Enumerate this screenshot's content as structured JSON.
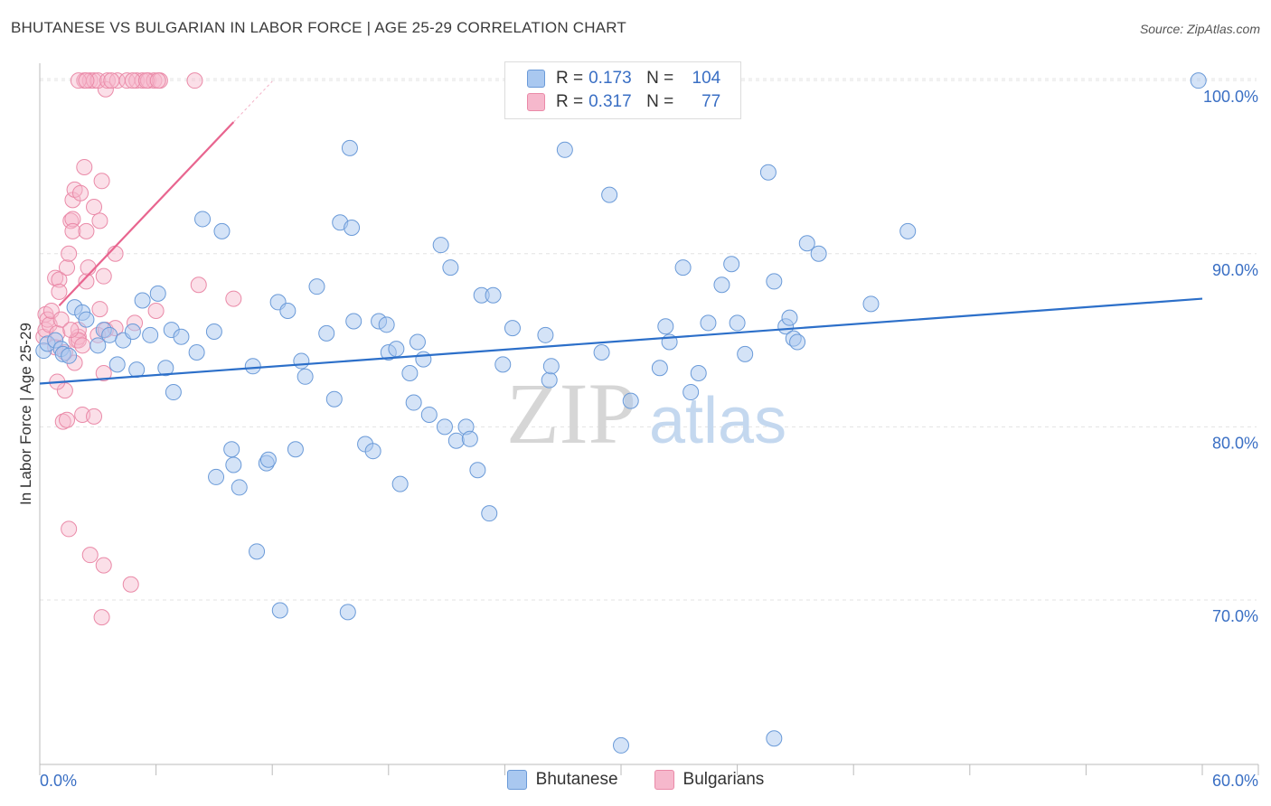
{
  "title": "BHUTANESE VS BULGARIAN IN LABOR FORCE | AGE 25-29 CORRELATION CHART",
  "source": "Source: ZipAtlas.com",
  "watermark": {
    "zip": "ZIP",
    "atlas": "atlas"
  },
  "colors": {
    "blue_fill": "#a9c8f0",
    "blue_stroke": "#6a9ad8",
    "blue_line": "#2c6fc9",
    "pink_fill": "#f6b8cc",
    "pink_stroke": "#ea8aa8",
    "pink_line": "#e8658f",
    "axis_label": "#3a6fc4",
    "grid": "#e3e3e3"
  },
  "legend": {
    "rows": [
      {
        "r_label": "R =",
        "r_value": "0.173",
        "n_label": "N =",
        "n_value": "104",
        "color": "#a9c8f0"
      },
      {
        "r_label": "R =",
        "r_value": "0.317",
        "n_label": "N =",
        "n_value": "77",
        "color": "#f6b8cc"
      }
    ]
  },
  "chart_data": {
    "type": "scatter",
    "title": "BHUTANESE VS BULGARIAN IN LABOR FORCE | AGE 25-29 CORRELATION CHART",
    "xlabel": "",
    "ylabel": "In Labor Force | Age 25-29",
    "xlim": [
      0,
      60
    ],
    "ylim": [
      60.5,
      101
    ],
    "x_tick_labels": [
      "0.0%",
      "60.0%"
    ],
    "y_ticks": [
      70,
      80,
      90,
      100
    ],
    "y_tick_labels": [
      "70.0%",
      "80.0%",
      "90.0%",
      "100.0%"
    ],
    "grid": true,
    "legend_position": "top-center",
    "series": [
      {
        "name": "Bhutanese",
        "color": "#a9c8f0",
        "trend": {
          "x": [
            0,
            60
          ],
          "y": [
            82.5,
            87.4
          ]
        },
        "points": [
          [
            0.2,
            84.4
          ],
          [
            0.4,
            84.8
          ],
          [
            0.8,
            85.0
          ],
          [
            1.1,
            84.5
          ],
          [
            1.2,
            84.2
          ],
          [
            1.8,
            86.9
          ],
          [
            2.2,
            86.6
          ],
          [
            2.4,
            86.2
          ],
          [
            3.0,
            84.7
          ],
          [
            3.3,
            85.6
          ],
          [
            3.6,
            85.3
          ],
          [
            4.0,
            83.6
          ],
          [
            4.3,
            85.0
          ],
          [
            4.8,
            85.5
          ],
          [
            5.0,
            83.3
          ],
          [
            5.3,
            87.3
          ],
          [
            5.7,
            85.3
          ],
          [
            6.1,
            87.7
          ],
          [
            6.8,
            85.6
          ],
          [
            6.5,
            83.4
          ],
          [
            7.3,
            85.2
          ],
          [
            6.9,
            82.0
          ],
          [
            8.1,
            84.3
          ],
          [
            8.4,
            92.0
          ],
          [
            9.0,
            85.5
          ],
          [
            9.1,
            77.1
          ],
          [
            9.4,
            91.3
          ],
          [
            9.9,
            78.7
          ],
          [
            10.0,
            77.8
          ],
          [
            10.3,
            76.5
          ],
          [
            11.0,
            83.5
          ],
          [
            11.2,
            72.8
          ],
          [
            11.7,
            77.9
          ],
          [
            11.8,
            78.1
          ],
          [
            12.3,
            87.2
          ],
          [
            12.4,
            69.4
          ],
          [
            12.8,
            86.7
          ],
          [
            13.2,
            78.7
          ],
          [
            13.5,
            83.8
          ],
          [
            13.7,
            82.9
          ],
          [
            14.3,
            88.1
          ],
          [
            14.8,
            85.4
          ],
          [
            15.2,
            81.6
          ],
          [
            16.2,
            86.1
          ],
          [
            15.9,
            69.3
          ],
          [
            15.5,
            91.8
          ],
          [
            16.1,
            91.5
          ],
          [
            16.0,
            96.1
          ],
          [
            16.8,
            79.0
          ],
          [
            17.2,
            78.6
          ],
          [
            17.5,
            86.1
          ],
          [
            17.9,
            85.9
          ],
          [
            18.0,
            84.3
          ],
          [
            18.4,
            84.5
          ],
          [
            18.6,
            76.7
          ],
          [
            19.1,
            83.1
          ],
          [
            19.3,
            81.4
          ],
          [
            19.5,
            84.9
          ],
          [
            19.8,
            83.9
          ],
          [
            20.1,
            80.7
          ],
          [
            20.7,
            90.5
          ],
          [
            20.9,
            80.0
          ],
          [
            21.2,
            89.2
          ],
          [
            21.5,
            79.2
          ],
          [
            22.0,
            80.0
          ],
          [
            22.2,
            79.3
          ],
          [
            22.6,
            77.5
          ],
          [
            22.8,
            87.6
          ],
          [
            23.4,
            87.6
          ],
          [
            23.2,
            75.0
          ],
          [
            23.9,
            83.6
          ],
          [
            24.4,
            85.7
          ],
          [
            26.1,
            85.3
          ],
          [
            26.3,
            82.7
          ],
          [
            26.4,
            83.5
          ],
          [
            27.1,
            96.0
          ],
          [
            29.0,
            84.3
          ],
          [
            29.4,
            93.4
          ],
          [
            30.5,
            81.5
          ],
          [
            32.0,
            83.4
          ],
          [
            32.3,
            85.8
          ],
          [
            32.5,
            84.9
          ],
          [
            33.2,
            89.2
          ],
          [
            33.6,
            82.0
          ],
          [
            34.0,
            83.1
          ],
          [
            34.5,
            86.0
          ],
          [
            35.2,
            88.2
          ],
          [
            35.7,
            89.4
          ],
          [
            36.0,
            86.0
          ],
          [
            36.4,
            84.2
          ],
          [
            37.6,
            94.7
          ],
          [
            37.9,
            88.4
          ],
          [
            38.5,
            85.8
          ],
          [
            38.7,
            86.3
          ],
          [
            38.9,
            85.1
          ],
          [
            39.1,
            84.9
          ],
          [
            39.6,
            90.6
          ],
          [
            40.2,
            90.0
          ],
          [
            42.9,
            87.1
          ],
          [
            44.8,
            91.3
          ],
          [
            30.0,
            61.6
          ],
          [
            37.9,
            62.0
          ],
          [
            59.8,
            100.0
          ],
          [
            1.5,
            84.1
          ]
        ]
      },
      {
        "name": "Bulgarians",
        "color": "#f6b8cc",
        "trend": {
          "x": [
            1.0,
            10.0
          ],
          "y": [
            87.0,
            97.6
          ]
        },
        "points": [
          [
            0.2,
            85.2
          ],
          [
            0.3,
            86.5
          ],
          [
            0.3,
            85.6
          ],
          [
            0.4,
            86.2
          ],
          [
            0.5,
            85.9
          ],
          [
            0.6,
            86.7
          ],
          [
            0.8,
            84.6
          ],
          [
            0.8,
            88.6
          ],
          [
            0.9,
            85.4
          ],
          [
            1.0,
            88.5
          ],
          [
            1.0,
            87.8
          ],
          [
            1.1,
            86.2
          ],
          [
            1.2,
            80.3
          ],
          [
            1.3,
            82.1
          ],
          [
            1.3,
            84.3
          ],
          [
            1.4,
            80.4
          ],
          [
            1.4,
            89.2
          ],
          [
            1.5,
            90.0
          ],
          [
            1.5,
            74.1
          ],
          [
            1.6,
            91.9
          ],
          [
            1.7,
            93.1
          ],
          [
            1.7,
            92.0
          ],
          [
            1.7,
            91.3
          ],
          [
            1.8,
            93.7
          ],
          [
            1.9,
            85.0
          ],
          [
            2.0,
            85.2
          ],
          [
            1.8,
            83.7
          ],
          [
            2.0,
            85.6
          ],
          [
            2.0,
            85.0
          ],
          [
            2.1,
            93.5
          ],
          [
            2.2,
            80.7
          ],
          [
            2.3,
            95.0
          ],
          [
            2.4,
            91.3
          ],
          [
            2.4,
            88.4
          ],
          [
            2.5,
            89.2
          ],
          [
            2.6,
            72.6
          ],
          [
            2.8,
            80.6
          ],
          [
            2.8,
            92.7
          ],
          [
            3.0,
            85.3
          ],
          [
            3.1,
            86.8
          ],
          [
            3.1,
            91.9
          ],
          [
            3.2,
            94.2
          ],
          [
            3.3,
            88.7
          ],
          [
            3.3,
            72.0
          ],
          [
            3.3,
            83.1
          ],
          [
            3.4,
            85.6
          ],
          [
            3.9,
            85.7
          ],
          [
            3.9,
            90.0
          ],
          [
            4.7,
            70.9
          ],
          [
            4.9,
            86.0
          ],
          [
            6.0,
            86.7
          ],
          [
            8.2,
            88.2
          ],
          [
            10.0,
            87.4
          ],
          [
            3.4,
            99.5
          ],
          [
            2.3,
            100.0
          ],
          [
            2.6,
            100.0
          ],
          [
            2.8,
            100.0
          ],
          [
            3.0,
            100.0
          ],
          [
            3.5,
            100.0
          ],
          [
            4.0,
            100.0
          ],
          [
            4.5,
            100.0
          ],
          [
            5.0,
            100.0
          ],
          [
            5.3,
            100.0
          ],
          [
            5.6,
            100.0
          ],
          [
            5.9,
            100.0
          ],
          [
            6.2,
            100.0
          ],
          [
            8.0,
            100.0
          ],
          [
            3.2,
            69.0
          ],
          [
            2.0,
            100.0
          ],
          [
            2.4,
            100.0
          ],
          [
            4.8,
            100.0
          ],
          [
            5.5,
            100.0
          ],
          [
            3.7,
            100.0
          ],
          [
            6.1,
            100.0
          ],
          [
            0.9,
            82.6
          ],
          [
            1.6,
            85.6
          ],
          [
            2.2,
            84.7
          ]
        ]
      }
    ]
  },
  "bottom_legend": [
    {
      "label": "Bhutanese",
      "color": "#a9c8f0"
    },
    {
      "label": "Bulgarians",
      "color": "#f6b8cc"
    }
  ]
}
